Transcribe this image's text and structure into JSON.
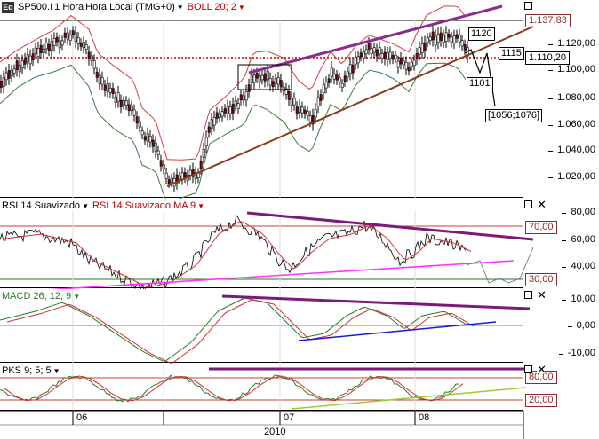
{
  "main_panel": {
    "symbol_icon": "Eq",
    "symbol": "SP500.I",
    "interval": "1 Hora",
    "timezone": "Hora Local (TMG+0)",
    "indicator": "BOLL 20; 2",
    "price_scale": [
      "1.137,83",
      "1.120,00",
      "1.110,20",
      "1.100,00",
      "1.080,00",
      "1.060,00",
      "1.040,00",
      "1.020,00"
    ],
    "annotations": [
      "1120",
      "1115",
      "1101",
      "[1056;1076]"
    ]
  },
  "rsi_panel": {
    "label": "RSI 14 Suavizado",
    "ma_label": "RSI 14 Suavizado MA 9",
    "scale": [
      "80,00",
      "70,00",
      "60,00",
      "40,00",
      "30,00"
    ]
  },
  "macd_panel": {
    "label": "MACD 26; 12; 9",
    "scale": [
      "10,00",
      "0,00",
      "-10,00"
    ]
  },
  "pks_panel": {
    "label": "PKS 9; 5; 5",
    "scale": [
      "80,00",
      "20,00"
    ]
  },
  "x_axis": {
    "months": [
      "06",
      "07",
      "08"
    ],
    "year": "2010"
  },
  "colors": {
    "price_up": "#ffffff",
    "price_down": "#8b0000",
    "boll_upper": "#d04040",
    "boll_lower": "#3a7a3a",
    "trend_upper": "#8b2b8b",
    "trend_lower": "#8b3a1e",
    "rsi_support": "#ff33ff",
    "macd_support": "#1a1acc",
    "pks_support": "#99cc33",
    "divergence": "#7a1a7a"
  }
}
